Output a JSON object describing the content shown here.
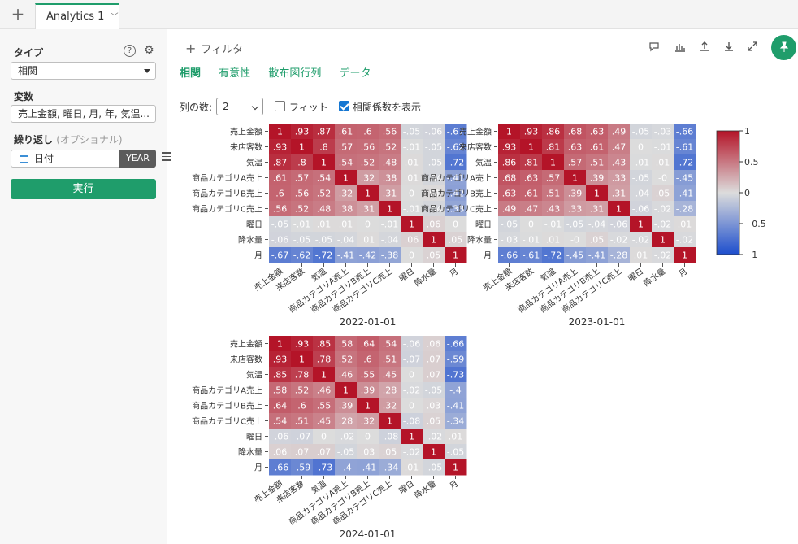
{
  "tabs": {
    "add_label": "+",
    "active_label": "Analytics 1",
    "chevron": "﹀"
  },
  "sidebar": {
    "type_label": "タイプ",
    "type_value": "相関",
    "variables_label": "変数",
    "variables_value": "売上金額, 曜日, 月, 年, 気温...",
    "repeat_label": "繰り返し",
    "repeat_optional": "(オプショナル)",
    "repeat_value": "日付",
    "year_button": "YEAR",
    "run_button": "実行"
  },
  "toolbar": {
    "filter_label": "フィルタ",
    "subtabs": [
      "相関",
      "有意性",
      "散布図行列",
      "データ"
    ]
  },
  "controls": {
    "columns_label": "列の数:",
    "columns_value": "2",
    "fit_label": "フィット",
    "fit_checked": false,
    "show_coef_label": "相関係数を表示",
    "show_coef_checked": true
  },
  "colors": {
    "accent": "#1f9d6b",
    "pos": "#b40426",
    "neutral": "#dddddd",
    "neg": "#3b4cc0"
  },
  "chart_data": {
    "type": "heatmap",
    "variables": [
      "売上金額",
      "来店客数",
      "気温",
      "商品カテゴリA売上",
      "商品カテゴリB売上",
      "商品カテゴリC売上",
      "曜日",
      "降水量",
      "月"
    ],
    "colorbar": {
      "range": [
        -1,
        1
      ],
      "ticks": [
        "1",
        "0.5",
        "0",
        "−0.5",
        "−1"
      ]
    },
    "panels": [
      {
        "title": "2022-01-01",
        "matrix": [
          [
            1,
            0.93,
            0.87,
            0.61,
            0.6,
            0.56,
            -0.05,
            -0.06,
            -0.67
          ],
          [
            0.93,
            1,
            0.8,
            0.57,
            0.56,
            0.52,
            -0.01,
            -0.05,
            -0.62
          ],
          [
            0.87,
            0.8,
            1,
            0.54,
            0.52,
            0.48,
            0.01,
            -0.05,
            -0.72
          ],
          [
            0.61,
            0.57,
            0.54,
            1,
            0.32,
            0.38,
            0.01,
            -0.04,
            -0.41
          ],
          [
            0.6,
            0.56,
            0.52,
            0.32,
            1,
            0.31,
            0,
            0.01,
            -0.42
          ],
          [
            0.56,
            0.52,
            0.48,
            0.38,
            0.31,
            1,
            -0.01,
            -0.04,
            -0.38
          ],
          [
            -0.05,
            -0.01,
            0.01,
            0.01,
            0,
            -0.01,
            1,
            0.06,
            0
          ],
          [
            -0.06,
            -0.05,
            -0.05,
            -0.04,
            0.01,
            -0.04,
            0.06,
            1,
            0.05
          ],
          [
            -0.67,
            -0.62,
            -0.72,
            -0.41,
            -0.42,
            -0.38,
            0,
            0.05,
            1
          ]
        ]
      },
      {
        "title": "2023-01-01",
        "matrix": [
          [
            1,
            0.93,
            0.86,
            0.68,
            0.63,
            0.49,
            -0.05,
            -0.03,
            -0.66
          ],
          [
            0.93,
            1,
            0.81,
            0.63,
            0.61,
            0.47,
            0,
            -0.01,
            -0.61
          ],
          [
            0.86,
            0.81,
            1,
            0.57,
            0.51,
            0.43,
            -0.01,
            0.01,
            -0.72
          ],
          [
            0.68,
            0.63,
            0.57,
            1,
            0.39,
            0.33,
            -0.05,
            0,
            -0.45
          ],
          [
            0.63,
            0.61,
            0.51,
            0.39,
            1,
            0.31,
            -0.04,
            0.05,
            -0.41
          ],
          [
            0.49,
            0.47,
            0.43,
            0.33,
            0.31,
            1,
            -0.06,
            -0.02,
            -0.28
          ],
          [
            -0.05,
            0,
            -0.01,
            -0.05,
            -0.04,
            -0.06,
            1,
            -0.02,
            0.01
          ],
          [
            -0.03,
            -0.01,
            0.01,
            0,
            0.05,
            -0.02,
            -0.02,
            1,
            -0.02
          ],
          [
            -0.66,
            -0.61,
            -0.72,
            -0.45,
            -0.41,
            -0.28,
            0.01,
            -0.02,
            1
          ]
        ]
      },
      {
        "title": "2024-01-01",
        "matrix": [
          [
            1,
            0.93,
            0.85,
            0.58,
            0.64,
            0.54,
            -0.06,
            0.06,
            -0.66
          ],
          [
            0.93,
            1,
            0.78,
            0.52,
            0.6,
            0.51,
            -0.07,
            0.07,
            -0.59
          ],
          [
            0.85,
            0.78,
            1,
            0.46,
            0.55,
            0.45,
            0,
            0.07,
            -0.73
          ],
          [
            0.58,
            0.52,
            0.46,
            1,
            0.39,
            0.28,
            -0.02,
            -0.05,
            -0.4
          ],
          [
            0.64,
            0.6,
            0.55,
            0.39,
            1,
            0.32,
            0,
            0.03,
            -0.41
          ],
          [
            0.54,
            0.51,
            0.45,
            0.28,
            0.32,
            1,
            -0.08,
            0.05,
            -0.34
          ],
          [
            -0.06,
            -0.07,
            0,
            -0.02,
            0,
            -0.08,
            1,
            -0.02,
            0.01
          ],
          [
            0.06,
            0.07,
            0.07,
            -0.05,
            0.03,
            0.05,
            -0.02,
            1,
            -0.05
          ],
          [
            -0.66,
            -0.59,
            -0.73,
            -0.4,
            -0.41,
            -0.34,
            0.01,
            -0.05,
            1
          ]
        ]
      }
    ]
  }
}
